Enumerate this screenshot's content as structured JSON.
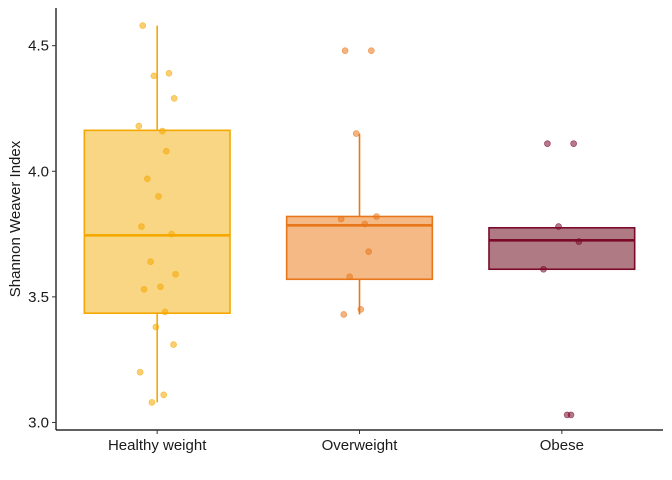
{
  "chart_data": {
    "type": "box",
    "title": "",
    "xlabel": "",
    "ylabel": "Shannon Weaver Index",
    "ylim": [
      2.97,
      4.65
    ],
    "yticks": [
      "3.0",
      "3.5",
      "4.0",
      "4.5"
    ],
    "grid": false,
    "legend": "none",
    "categories": [
      "Healthy weight",
      "Overweight",
      "Obese"
    ],
    "series": [
      {
        "category": "Healthy weight",
        "color": "#F5A800",
        "fill": "#F9D683",
        "q1": 3.435,
        "median": 3.745,
        "q3": 4.163,
        "whisker_low": 3.08,
        "whisker_high": 4.58,
        "points": [
          4.58,
          4.39,
          4.38,
          4.29,
          4.18,
          4.16,
          4.08,
          3.97,
          3.9,
          3.78,
          3.75,
          3.64,
          3.59,
          3.54,
          3.53,
          3.44,
          3.38,
          3.31,
          3.2,
          3.11,
          3.08
        ]
      },
      {
        "category": "Overweight",
        "color": "#E8761A",
        "fill": "#F4B985",
        "q1": 3.57,
        "median": 3.785,
        "q3": 3.82,
        "whisker_low": 3.43,
        "whisker_high": 4.15,
        "points": [
          4.48,
          4.48,
          4.15,
          3.82,
          3.81,
          3.79,
          3.68,
          3.58,
          3.45,
          3.43
        ]
      },
      {
        "category": "Obese",
        "color": "#7B0A2A",
        "fill": "#B07A85",
        "q1": 3.61,
        "median": 3.725,
        "q3": 3.775,
        "whisker_low": 3.61,
        "whisker_high": 3.775,
        "points": [
          4.11,
          4.11,
          3.78,
          3.72,
          3.61,
          3.03,
          3.03
        ]
      }
    ]
  }
}
